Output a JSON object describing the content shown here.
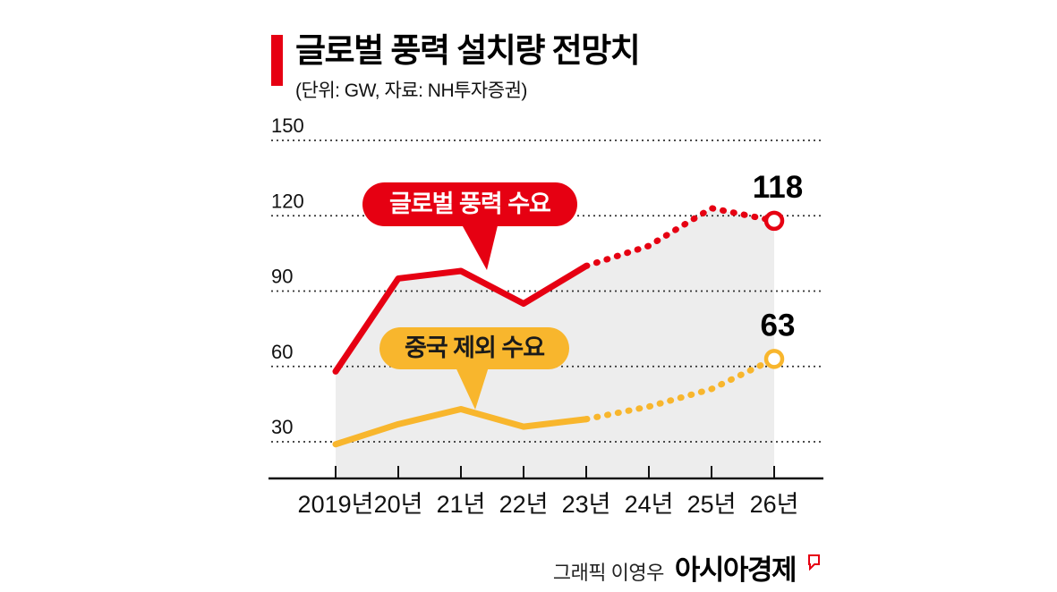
{
  "header": {
    "title": "글로벌 풍력 설치량 전망치",
    "subtitle": "(단위: GW, 자료: NH투자증권)",
    "accent_color": "#E60012"
  },
  "chart_data": {
    "type": "line",
    "title": "글로벌 풍력 설치량 전망치",
    "unit": "GW",
    "source": "NH투자증권",
    "categories": [
      "2019년",
      "20년",
      "21년",
      "22년",
      "23년",
      "24년",
      "25년",
      "26년"
    ],
    "y_ticks": [
      30,
      60,
      90,
      120,
      150
    ],
    "ylim": [
      30,
      150
    ],
    "grid": "dotted-horizontal",
    "legend_position": "inline-callouts",
    "forecast_from_index": 4,
    "series": [
      {
        "name": "글로벌 풍력 수요",
        "color": "#E60012",
        "values": [
          58,
          95,
          98,
          85,
          100,
          108,
          123,
          118
        ],
        "end_label": "118",
        "area_fill": "#EDEDED",
        "style": "solid-then-dotted-forecast"
      },
      {
        "name": "중국 제외 수요",
        "color": "#F8B62D",
        "values": [
          29,
          37,
          43,
          36,
          39,
          44,
          51,
          63
        ],
        "end_label": "63",
        "area_fill": "none",
        "style": "solid-then-dotted-forecast"
      }
    ],
    "callouts": [
      {
        "label": "글로벌 풍력 수요",
        "bg": "#E60012",
        "text_color": "#FFFFFF"
      },
      {
        "label": "중국 제외 수요",
        "bg": "#F8B62D",
        "text_color": "#1A1A1A"
      }
    ]
  },
  "footer": {
    "credit": "그래픽 이영우",
    "brand": "아시아경제"
  }
}
